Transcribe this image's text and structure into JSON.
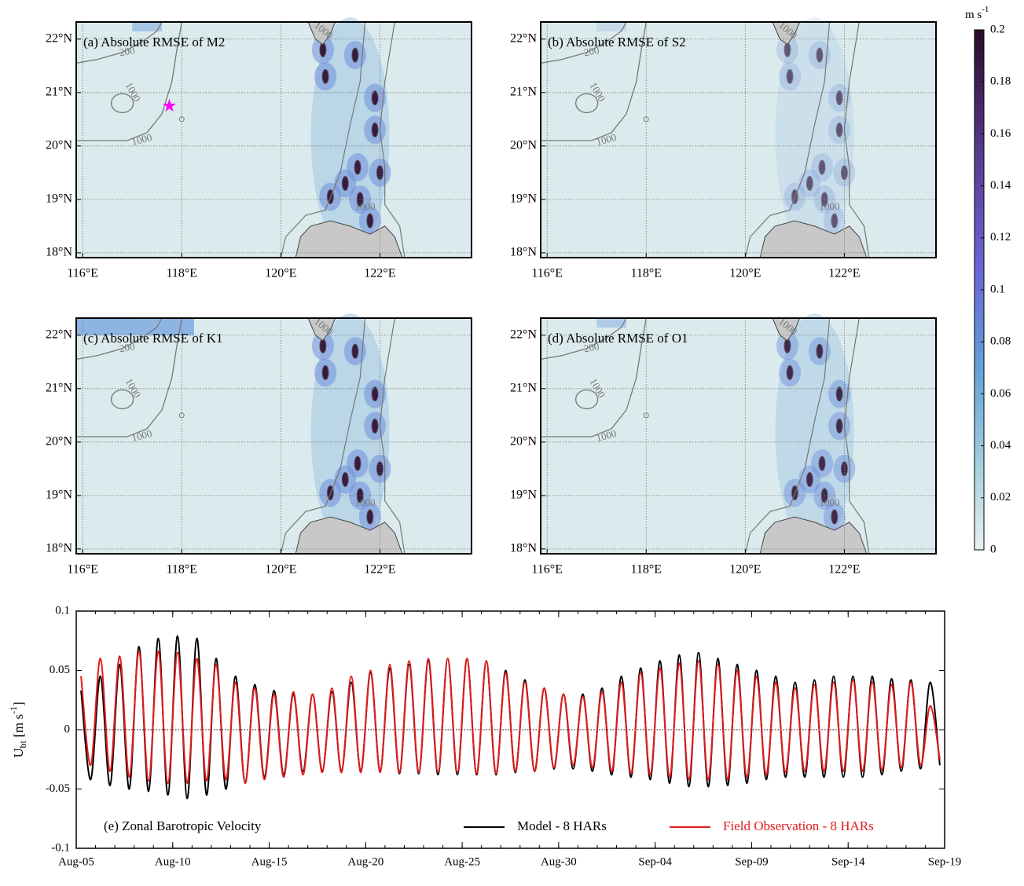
{
  "chart_data": [
    {
      "type": "map",
      "title": "(a) Absolute RMSE of M2",
      "xlim": [
        115.87,
        123.85
      ],
      "ylim": [
        17.91,
        22.32
      ],
      "xticks": [
        {
          "value": 116,
          "label": "116°E"
        },
        {
          "value": 118,
          "label": "118°E"
        },
        {
          "value": 120,
          "label": "120°E"
        },
        {
          "value": 122,
          "label": "122°E"
        }
      ],
      "yticks": [
        {
          "value": 18,
          "label": "18°N"
        },
        {
          "value": 19,
          "label": "19°N"
        },
        {
          "value": 20,
          "label": "20°N"
        },
        {
          "value": 21,
          "label": "21°N"
        },
        {
          "value": 22,
          "label": "22°N"
        }
      ],
      "grid": true,
      "contour_labels": [
        "200",
        "1000",
        "1000",
        "1000",
        "1000"
      ],
      "marker": {
        "lon": 117.75,
        "lat": 20.75,
        "color": "#ff00ff"
      }
    },
    {
      "type": "map",
      "title": "(b) Absolute RMSE of S2",
      "xlim": [
        115.87,
        123.85
      ],
      "ylim": [
        17.91,
        22.32
      ],
      "xticks": [
        {
          "value": 116,
          "label": "116°E"
        },
        {
          "value": 118,
          "label": "118°E"
        },
        {
          "value": 120,
          "label": "120°E"
        },
        {
          "value": 122,
          "label": "122°E"
        }
      ],
      "yticks": [
        {
          "value": 18,
          "label": "18°N"
        },
        {
          "value": 19,
          "label": "19°N"
        },
        {
          "value": 20,
          "label": "20°N"
        },
        {
          "value": 21,
          "label": "21°N"
        },
        {
          "value": 22,
          "label": "22°N"
        }
      ],
      "grid": true,
      "contour_labels": [
        "200",
        "1000",
        "1000",
        "1000",
        "1000"
      ]
    },
    {
      "type": "map",
      "title": "(c) Absolute RMSE of K1",
      "xlim": [
        115.87,
        123.85
      ],
      "ylim": [
        17.91,
        22.32
      ],
      "xticks": [
        {
          "value": 116,
          "label": "116°E"
        },
        {
          "value": 118,
          "label": "118°E"
        },
        {
          "value": 120,
          "label": "120°E"
        },
        {
          "value": 122,
          "label": "122°E"
        }
      ],
      "yticks": [
        {
          "value": 18,
          "label": "18°N"
        },
        {
          "value": 19,
          "label": "19°N"
        },
        {
          "value": 20,
          "label": "20°N"
        },
        {
          "value": 21,
          "label": "21°N"
        },
        {
          "value": 22,
          "label": "22°N"
        }
      ],
      "grid": true,
      "contour_labels": [
        "200",
        "1000",
        "1000",
        "1000",
        "1000"
      ]
    },
    {
      "type": "map",
      "title": "(d) Absolute RMSE of O1",
      "xlim": [
        115.87,
        123.85
      ],
      "ylim": [
        17.91,
        22.32
      ],
      "xticks": [
        {
          "value": 116,
          "label": "116°E"
        },
        {
          "value": 118,
          "label": "118°E"
        },
        {
          "value": 120,
          "label": "120°E"
        },
        {
          "value": 122,
          "label": "122°E"
        }
      ],
      "yticks": [
        {
          "value": 18,
          "label": "18°N"
        },
        {
          "value": 19,
          "label": "19°N"
        },
        {
          "value": 20,
          "label": "20°N"
        },
        {
          "value": 21,
          "label": "21°N"
        },
        {
          "value": 22,
          "label": "22°N"
        }
      ],
      "grid": true,
      "contour_labels": [
        "200",
        "1000",
        "1000",
        "1000",
        "1000"
      ]
    },
    {
      "type": "colorbar",
      "unit": {
        "main": "m s",
        "sup": "-1"
      },
      "ylim": [
        0,
        0.2
      ],
      "yticks": [
        0,
        0.02,
        0.04,
        0.06,
        0.08,
        0.1,
        0.12,
        0.14,
        0.16,
        0.18,
        0.2
      ]
    },
    {
      "type": "line",
      "title": "(e) Zonal Barotropic Velocity",
      "ylabel": {
        "main": "U",
        "sub": "bt",
        "unit": " [m s",
        "sup": "-1",
        "end": "]"
      },
      "xlim": [
        0,
        45
      ],
      "ylim": [
        -0.1,
        0.1
      ],
      "xticks": [
        {
          "value": 0,
          "label": "Aug-05"
        },
        {
          "value": 5,
          "label": "Aug-10"
        },
        {
          "value": 10,
          "label": "Aug-15"
        },
        {
          "value": 15,
          "label": "Aug-20"
        },
        {
          "value": 20,
          "label": "Aug-25"
        },
        {
          "value": 25,
          "label": "Aug-30"
        },
        {
          "value": 30,
          "label": "Sep-04"
        },
        {
          "value": 35,
          "label": "Sep-09"
        },
        {
          "value": 40,
          "label": "Sep-14"
        },
        {
          "value": 45,
          "label": "Sep-19"
        }
      ],
      "yticks": [
        -0.1,
        -0.05,
        0,
        0.05,
        0.1
      ],
      "x": [
        0.25,
        0.75,
        1.25,
        1.75,
        2.25,
        2.75,
        3.25,
        3.75,
        4.25,
        4.75,
        5.25,
        5.75,
        6.25,
        6.75,
        7.25,
        7.75,
        8.25,
        8.75,
        9.25,
        9.75,
        10.25,
        10.75,
        11.25,
        11.75,
        12.25,
        12.75,
        13.25,
        13.75,
        14.25,
        14.75,
        15.25,
        15.75,
        16.25,
        16.75,
        17.25,
        17.75,
        18.25,
        18.75,
        19.25,
        19.75,
        20.25,
        20.75,
        21.25,
        21.75,
        22.25,
        22.75,
        23.25,
        23.75,
        24.25,
        24.75,
        25.25,
        25.75,
        26.25,
        26.75,
        27.25,
        27.75,
        28.25,
        28.75,
        29.25,
        29.75,
        30.25,
        30.75,
        31.25,
        31.75,
        32.25,
        32.75,
        33.25,
        33.75,
        34.25,
        34.75,
        35.25,
        35.75,
        36.25,
        36.75,
        37.25,
        37.75,
        38.25,
        38.75,
        39.25,
        39.75,
        40.25,
        40.75,
        41.25,
        41.75,
        42.25,
        42.75,
        43.25,
        43.75,
        44.25,
        44.75
      ],
      "series": [
        {
          "name": "Model - 8 HARs",
          "color": "#000000",
          "values": [
            0.033,
            -0.042,
            0.045,
            -0.047,
            0.055,
            -0.05,
            0.07,
            -0.052,
            0.077,
            -0.055,
            0.079,
            -0.058,
            0.077,
            -0.055,
            0.06,
            -0.05,
            0.045,
            -0.045,
            0.038,
            -0.04,
            0.033,
            -0.038,
            0.03,
            -0.035,
            0.03,
            -0.035,
            0.032,
            -0.035,
            0.04,
            -0.035,
            0.048,
            -0.035,
            0.052,
            -0.037,
            0.055,
            -0.037,
            0.058,
            -0.038,
            0.06,
            -0.038,
            0.06,
            -0.038,
            0.058,
            -0.038,
            0.05,
            -0.036,
            0.042,
            -0.035,
            0.035,
            -0.033,
            0.03,
            -0.033,
            0.03,
            -0.035,
            0.035,
            -0.038,
            0.045,
            -0.04,
            0.052,
            -0.042,
            0.058,
            -0.045,
            0.063,
            -0.048,
            0.065,
            -0.048,
            0.06,
            -0.047,
            0.055,
            -0.045,
            0.05,
            -0.042,
            0.045,
            -0.04,
            0.04,
            -0.04,
            0.042,
            -0.04,
            0.045,
            -0.04,
            0.045,
            -0.04,
            0.045,
            -0.038,
            0.043,
            -0.035,
            0.042,
            -0.033,
            0.04,
            -0.03
          ]
        },
        {
          "name": "Field Observation - 8 HARs",
          "color": "#e41a1c",
          "values": [
            0.045,
            -0.03,
            0.06,
            -0.035,
            0.062,
            -0.04,
            0.066,
            -0.043,
            0.066,
            -0.045,
            0.065,
            -0.045,
            0.06,
            -0.043,
            0.055,
            -0.042,
            0.04,
            -0.045,
            0.035,
            -0.042,
            0.03,
            -0.04,
            0.032,
            -0.038,
            0.03,
            -0.036,
            0.035,
            -0.036,
            0.045,
            -0.036,
            0.05,
            -0.036,
            0.055,
            -0.036,
            0.058,
            -0.036,
            0.06,
            -0.036,
            0.06,
            -0.036,
            0.06,
            -0.037,
            0.058,
            -0.037,
            0.048,
            -0.035,
            0.04,
            -0.035,
            0.035,
            -0.032,
            0.03,
            -0.03,
            0.028,
            -0.032,
            0.032,
            -0.035,
            0.04,
            -0.037,
            0.048,
            -0.038,
            0.052,
            -0.04,
            0.056,
            -0.042,
            0.058,
            -0.042,
            0.055,
            -0.042,
            0.05,
            -0.04,
            0.045,
            -0.038,
            0.04,
            -0.036,
            0.035,
            -0.035,
            0.038,
            -0.035,
            0.04,
            -0.035,
            0.042,
            -0.035,
            0.04,
            -0.034,
            0.038,
            -0.032,
            0.04,
            -0.03,
            0.02,
            -0.025
          ]
        }
      ],
      "zero_line": true
    }
  ]
}
